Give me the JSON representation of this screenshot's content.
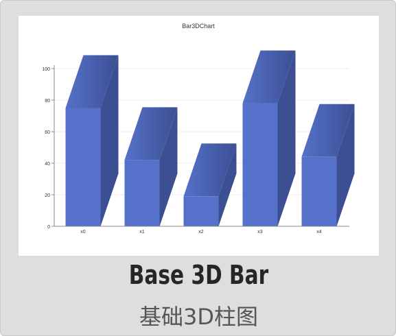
{
  "card": {
    "title_en": "Base 3D Bar",
    "title_cn": "基础3D柱图"
  },
  "colors": {
    "bar_front": "#5571c9",
    "bar_top": "#4a64b8",
    "bar_side": "#3c4f92",
    "axis": "#888888",
    "grid": "#eeeeee"
  },
  "chart_data": {
    "type": "bar",
    "title": "Bar3DChart",
    "categories": [
      "x0",
      "x1",
      "x2",
      "x3",
      "x4"
    ],
    "values": [
      75,
      42,
      19,
      78,
      44
    ],
    "ylim": [
      0,
      100
    ],
    "yticks": [
      0,
      20,
      40,
      60,
      80,
      100
    ],
    "grid": true,
    "style": "3d"
  }
}
